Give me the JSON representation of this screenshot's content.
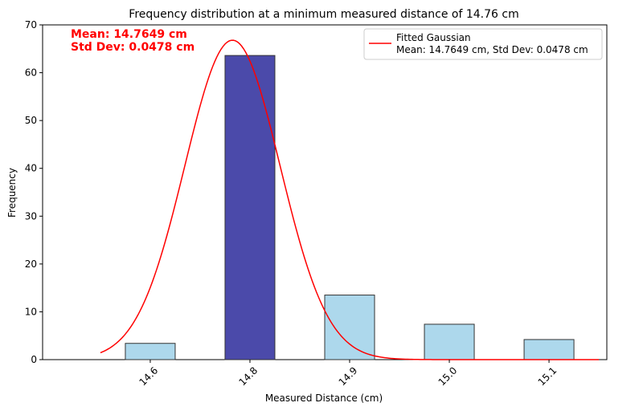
{
  "chart_data": {
    "type": "bar",
    "title": "Frequency distribution at a minimum measured distance of 14.76 cm",
    "xlabel": "Measured Distance (cm)",
    "ylabel": "Frequency",
    "categories": [
      "14.6",
      "14.8",
      "14.9",
      "15.0",
      "15.1"
    ],
    "values": [
      3.4,
      63.6,
      13.5,
      7.4,
      4.2
    ],
    "highlighted_category": "14.8",
    "ylim": [
      0,
      70
    ],
    "yticks": [
      0,
      10,
      20,
      30,
      40,
      50,
      60,
      70
    ],
    "xlim": [
      -1.08,
      4.58
    ],
    "bar_width": 0.5,
    "grid": false,
    "colors": {
      "bar": "#add8ec",
      "bar_highlight": "#4b4aaa",
      "bar_edge": "#333333",
      "curve": "#ff0000"
    },
    "annotations": [
      {
        "text": "Mean: 14.7649 cm",
        "color": "#ff0000"
      },
      {
        "text": "Std Dev: 0.0478 cm",
        "color": "#ff0000"
      }
    ],
    "legend": {
      "placement": "top-right",
      "entries": [
        {
          "label": "Fitted Gaussian",
          "sub": "Mean: 14.7649 cm, Std Dev: 0.0478 cm",
          "color": "#ff0000"
        }
      ]
    },
    "fitted_curve": {
      "name": "Fitted Gaussian",
      "mean": 14.7649,
      "std": 0.0478,
      "peak": 66.8,
      "x_range": [
        14.55,
        15.15
      ]
    }
  }
}
